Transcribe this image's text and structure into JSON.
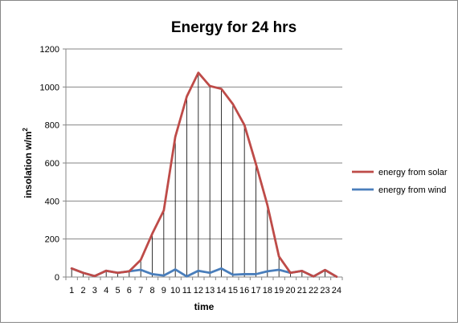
{
  "chart_data": {
    "type": "line",
    "title": "Energy for 24 hrs",
    "xlabel": "time",
    "ylabel_main": "insolation w/m",
    "ylabel_sup": "2",
    "categories": [
      "1",
      "2",
      "3",
      "4",
      "5",
      "6",
      "7",
      "8",
      "9",
      "10",
      "11",
      "12",
      "13",
      "14",
      "15",
      "16",
      "17",
      "18",
      "19",
      "20",
      "21",
      "22",
      "23",
      "24"
    ],
    "ylim": [
      0,
      1200
    ],
    "yticks": [
      "0",
      "200",
      "400",
      "600",
      "800",
      "1000",
      "1200"
    ],
    "grid": true,
    "legend_position": "right",
    "drop_lines": true,
    "series": [
      {
        "name": "energy from solar",
        "color": "#be4b48",
        "values": [
          45,
          22,
          5,
          33,
          22,
          30,
          90,
          228,
          350,
          738,
          950,
          1075,
          1005,
          990,
          910,
          800,
          595,
          378,
          108,
          22,
          32,
          3,
          37,
          2
        ]
      },
      {
        "name": "energy from wind",
        "color": "#4a7ebb",
        "values": [
          45,
          22,
          5,
          33,
          22,
          30,
          38,
          15,
          8,
          40,
          3,
          33,
          22,
          45,
          12,
          15,
          15,
          30,
          38,
          22,
          32,
          3,
          37,
          2
        ]
      }
    ]
  }
}
